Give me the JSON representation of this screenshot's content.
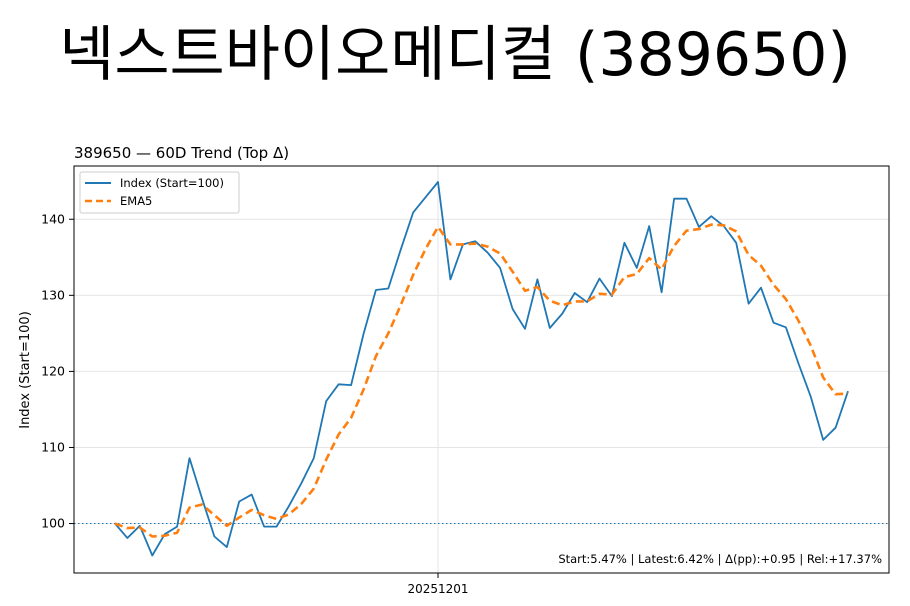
{
  "page_title": "넥스트바이오메디컬 (389650)",
  "chart_data": {
    "type": "line",
    "title": "389650 — 60D Trend (Top Δ)",
    "xlabel": "",
    "ylabel": "Index (Start=100)",
    "x_tick_labels": [
      {
        "index": 26,
        "label": "20251201"
      }
    ],
    "yticks": [
      100,
      110,
      120,
      130,
      140
    ],
    "ylim": [
      93.5,
      147
    ],
    "xlim": [
      -3.3,
      62.3
    ],
    "grid": true,
    "legend_position": "top-left",
    "baseline": {
      "value": 100,
      "style": "dotted"
    },
    "annotation": "Start:5.47% | Latest:6.42% | Δ(pp):+0.95 | Rel:+17.37%",
    "colors": {
      "index": "#1f77b4",
      "ema": "#ff7f0e"
    },
    "series": [
      {
        "name": "Index (Start=100)",
        "style": "solid",
        "values": [
          100.0,
          98.1,
          99.7,
          95.8,
          98.6,
          99.6,
          108.6,
          103.3,
          98.3,
          96.9,
          102.9,
          103.8,
          99.6,
          99.6,
          102.3,
          105.3,
          108.6,
          116.1,
          118.3,
          118.2,
          124.9,
          130.7,
          130.9,
          136.0,
          140.9,
          142.9,
          144.9,
          132.1,
          136.7,
          137.1,
          135.6,
          133.6,
          128.2,
          125.6,
          132.1,
          125.7,
          127.6,
          130.3,
          129.1,
          132.2,
          129.9,
          136.9,
          133.6,
          139.1,
          130.4,
          142.7,
          142.7,
          139.0,
          140.4,
          139.1,
          136.9,
          128.9,
          131.0,
          126.4,
          125.8,
          121.1,
          116.7,
          111.0,
          112.6,
          117.4
        ]
      },
      {
        "name": "EMA5",
        "style": "dashed",
        "values": [
          100.0,
          99.4,
          99.5,
          98.3,
          98.4,
          98.8,
          102.1,
          102.5,
          101.1,
          99.7,
          100.8,
          101.8,
          101.1,
          100.6,
          101.2,
          102.6,
          104.6,
          108.4,
          111.7,
          113.9,
          117.6,
          122.0,
          125.0,
          128.7,
          132.7,
          136.1,
          139.0,
          136.7,
          136.7,
          136.8,
          136.4,
          135.5,
          133.1,
          130.6,
          131.1,
          129.3,
          128.7,
          129.2,
          129.2,
          130.2,
          130.1,
          132.4,
          132.8,
          134.9,
          133.4,
          136.5,
          138.5,
          138.7,
          139.3,
          139.2,
          138.4,
          135.3,
          133.9,
          131.4,
          129.5,
          126.7,
          123.4,
          119.2,
          117.0,
          117.1
        ]
      }
    ]
  }
}
